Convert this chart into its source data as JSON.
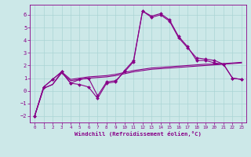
{
  "xlabel": "Windchill (Refroidissement éolien,°C)",
  "bg_color": "#cce8e8",
  "line_color": "#880088",
  "grid_color": "#aad4d4",
  "xlim": [
    -0.5,
    23.5
  ],
  "ylim": [
    -2.5,
    6.8
  ],
  "yticks": [
    -2,
    -1,
    0,
    1,
    2,
    3,
    4,
    5,
    6
  ],
  "xticks": [
    0,
    1,
    2,
    3,
    4,
    5,
    6,
    7,
    8,
    9,
    10,
    11,
    12,
    13,
    14,
    15,
    16,
    17,
    18,
    19,
    20,
    21,
    22,
    23
  ],
  "x": [
    0,
    1,
    2,
    3,
    4,
    5,
    6,
    7,
    8,
    9,
    10,
    11,
    12,
    13,
    14,
    15,
    16,
    17,
    18,
    19,
    20,
    21,
    22,
    23
  ],
  "line1": [
    -2.0,
    0.3,
    0.9,
    1.5,
    0.6,
    0.5,
    0.3,
    -0.6,
    0.6,
    0.7,
    1.6,
    2.4,
    6.3,
    5.8,
    6.0,
    5.5,
    4.2,
    3.4,
    2.6,
    2.5,
    2.4,
    2.1,
    1.0,
    0.9
  ],
  "line2": [
    -2.0,
    0.3,
    0.9,
    1.5,
    0.6,
    0.9,
    1.0,
    -0.4,
    0.7,
    0.8,
    1.5,
    2.3,
    6.3,
    5.9,
    6.1,
    5.6,
    4.3,
    3.5,
    2.4,
    2.4,
    2.2,
    2.1,
    1.0,
    0.9
  ],
  "line3": [
    -2.0,
    0.2,
    0.5,
    1.4,
    0.8,
    0.9,
    1.0,
    1.05,
    1.1,
    1.2,
    1.35,
    1.5,
    1.6,
    1.7,
    1.75,
    1.8,
    1.85,
    1.9,
    1.95,
    2.0,
    2.05,
    2.1,
    2.15,
    2.2
  ],
  "line4": [
    -2.0,
    0.2,
    0.5,
    1.5,
    0.9,
    1.0,
    1.1,
    1.15,
    1.2,
    1.3,
    1.45,
    1.6,
    1.7,
    1.8,
    1.85,
    1.9,
    1.95,
    2.0,
    2.05,
    2.1,
    2.1,
    2.15,
    2.2,
    2.25
  ]
}
